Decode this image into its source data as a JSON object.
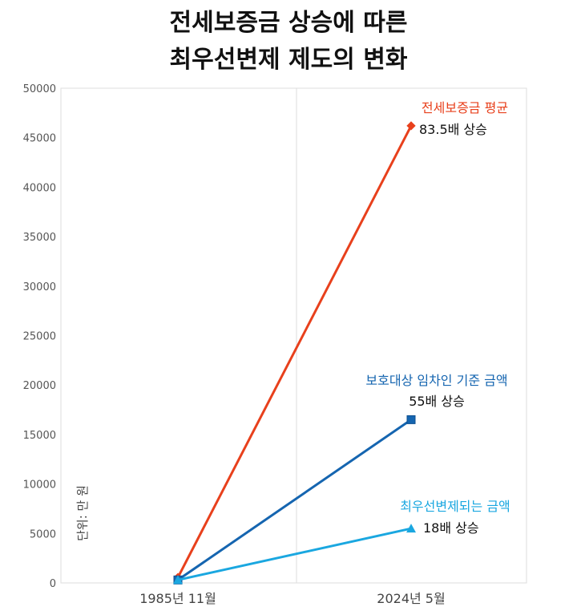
{
  "chart_data": {
    "type": "line",
    "title": [
      "전세보증금 상승에 따른",
      "최우선변제 제도의 변화"
    ],
    "ylabel": "단위: 만 원",
    "categories": [
      "1985년 11월",
      "2024년 5월"
    ],
    "ylim": [
      0,
      50000
    ],
    "yticks": [
      0,
      5000,
      10000,
      15000,
      20000,
      25000,
      30000,
      35000,
      40000,
      45000,
      50000
    ],
    "grid": false,
    "series": [
      {
        "name": "전세보증금 평균",
        "values": [
          553,
          46200
        ],
        "color": "#e8401c",
        "marker": "diamond",
        "annotation": "83.5배 상승"
      },
      {
        "name": "보호대상 임차인 기준 금액",
        "values": [
          300,
          16500
        ],
        "color": "#1565b0",
        "marker": "square",
        "annotation": "55배 상승"
      },
      {
        "name": "최우선변제되는 금액",
        "values": [
          300,
          5500
        ],
        "color": "#1aa7e0",
        "marker": "triangle",
        "annotation": "18배 상승"
      }
    ]
  }
}
